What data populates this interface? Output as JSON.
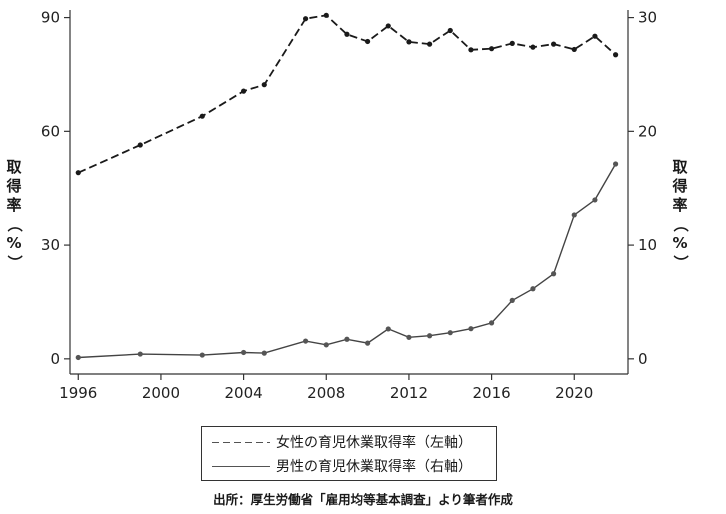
{
  "chart_data": {
    "type": "line",
    "x": [
      1996,
      1999,
      2002,
      2004,
      2005,
      2007,
      2008,
      2009,
      2010,
      2011,
      2012,
      2013,
      2014,
      2015,
      2016,
      2017,
      2018,
      2019,
      2020,
      2021,
      2022
    ],
    "series": [
      {
        "name": "女性の育児休業取得率（左軸）",
        "axis": "left",
        "style": "dashed",
        "values": [
          49.1,
          56.4,
          64.0,
          70.6,
          72.3,
          89.7,
          90.6,
          85.6,
          83.7,
          87.8,
          83.6,
          83.0,
          86.6,
          81.5,
          81.8,
          83.2,
          82.2,
          83.0,
          81.6,
          85.1,
          80.2
        ]
      },
      {
        "name": "男性の育児休業取得率（右軸）",
        "axis": "right",
        "style": "solid",
        "values": [
          0.12,
          0.42,
          0.33,
          0.56,
          0.5,
          1.56,
          1.23,
          1.72,
          1.38,
          2.63,
          1.89,
          2.03,
          2.3,
          2.65,
          3.16,
          5.14,
          6.16,
          7.48,
          12.65,
          13.97,
          17.13
        ]
      }
    ],
    "y_left": {
      "ticks": [
        0,
        30,
        60,
        90
      ],
      "range": [
        -4,
        92
      ]
    },
    "y_right": {
      "ticks": [
        0,
        10,
        20,
        30
      ],
      "range": [
        -1.333,
        30.667
      ]
    },
    "x_axis": {
      "ticks": [
        1996,
        2000,
        2004,
        2008,
        2012,
        2016,
        2020
      ],
      "range": [
        1995.6,
        2022.6
      ]
    },
    "ylabel_left": "取得率（%）",
    "ylabel_right": "取得率（%）",
    "legend_position": "bottom-center",
    "grid": false
  },
  "legend": {
    "female": "女性の育児休業取得率（左軸）",
    "male": "男性の育児休業取得率（右軸）"
  },
  "source": "出所：厚生労働省「雇用均等基本調査」より筆者作成",
  "colors": {
    "line": "#1a1a1a",
    "axis": "#333333"
  }
}
